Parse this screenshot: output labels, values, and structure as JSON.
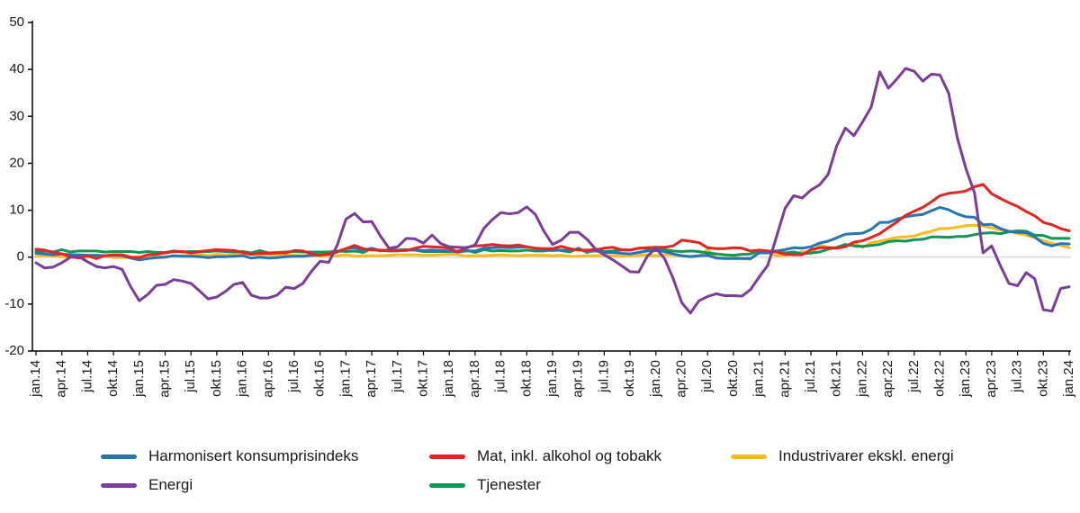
{
  "chart_data": {
    "type": "line",
    "title": "",
    "xlabel": "",
    "ylabel": "",
    "x_unit": "month",
    "x_tick_labels": [
      "jan.14",
      "apr.14",
      "jul.14",
      "okt.14",
      "jan.15",
      "apr.15",
      "jul.15",
      "okt.15",
      "jan.16",
      "apr.16",
      "jul.16",
      "okt.16",
      "jan.17",
      "apr.17",
      "jul.17",
      "okt.17",
      "jan.18",
      "apr.18",
      "jul.18",
      "okt.18",
      "jan.19",
      "apr.19",
      "jul.19",
      "okt.19",
      "jan.20",
      "apr.20",
      "jul.20",
      "okt.20",
      "jan.21",
      "apr.21",
      "jul.21",
      "okt.21",
      "jan.22",
      "apr.22",
      "jul.22",
      "okt.22",
      "jan.23",
      "apr.23",
      "jul.23",
      "okt.23",
      "jan.24"
    ],
    "x_ticks_every_n_points": 3,
    "ylim": [
      -20,
      50
    ],
    "y_ticks": [
      50,
      40,
      30,
      20,
      10,
      0,
      -10,
      -20
    ],
    "grid": "zero-line-only",
    "legend_position": "bottom",
    "legend_columns": 3,
    "draw_order": [
      2,
      4,
      0,
      1,
      3
    ],
    "axis_color": "#000000",
    "zero_line_color": "#c8c8c8",
    "series": [
      {
        "name": "Harmonisert konsumprisindeks",
        "color": "#2575b5",
        "values": [
          0.8,
          0.7,
          0.5,
          0.7,
          0.5,
          0.5,
          0.4,
          0.4,
          0.3,
          0.4,
          0.3,
          -0.2,
          -0.6,
          -0.3,
          -0.1,
          0.0,
          0.3,
          0.2,
          0.2,
          0.1,
          -0.1,
          0.1,
          0.1,
          0.2,
          0.3,
          -0.2,
          0.0,
          -0.2,
          -0.1,
          0.1,
          0.2,
          0.2,
          0.4,
          0.5,
          0.6,
          1.1,
          1.8,
          2.0,
          1.5,
          1.9,
          1.4,
          1.3,
          1.3,
          1.5,
          1.5,
          1.4,
          1.5,
          1.4,
          1.3,
          1.1,
          1.3,
          1.3,
          1.9,
          2.0,
          2.1,
          2.0,
          2.1,
          2.2,
          1.9,
          1.5,
          1.4,
          1.5,
          1.4,
          1.7,
          1.2,
          1.3,
          1.0,
          1.0,
          0.8,
          0.7,
          1.0,
          1.3,
          1.4,
          1.2,
          0.7,
          0.3,
          0.1,
          0.3,
          0.4,
          -0.2,
          -0.3,
          -0.3,
          -0.3,
          -0.3,
          0.9,
          0.9,
          1.3,
          1.6,
          2.0,
          1.9,
          2.2,
          3.0,
          3.4,
          4.1,
          4.9,
          5.0,
          5.1,
          5.9,
          7.4,
          7.4,
          8.1,
          8.6,
          8.9,
          9.1,
          9.9,
          10.6,
          10.1,
          9.2,
          8.6,
          8.5,
          6.9,
          7.0,
          6.1,
          5.5,
          5.3,
          5.2,
          4.3,
          2.9,
          2.4,
          2.9,
          2.8
        ]
      },
      {
        "name": "Mat, inkl. alkohol og tobakk",
        "color": "#e52421",
        "values": [
          1.7,
          1.5,
          1.0,
          0.7,
          0.1,
          -0.2,
          0.3,
          -0.3,
          0.3,
          0.5,
          0.5,
          0.0,
          -0.1,
          0.5,
          0.6,
          0.9,
          1.2,
          1.2,
          0.9,
          1.2,
          1.4,
          1.6,
          1.5,
          1.4,
          1.0,
          0.6,
          0.8,
          0.8,
          0.9,
          0.9,
          1.4,
          1.3,
          0.7,
          0.4,
          0.7,
          1.2,
          1.8,
          2.5,
          1.8,
          1.5,
          1.5,
          1.4,
          1.4,
          1.4,
          1.9,
          2.3,
          2.2,
          2.1,
          1.9,
          1.1,
          2.1,
          2.4,
          2.5,
          2.7,
          2.5,
          2.4,
          2.6,
          2.2,
          1.9,
          1.8,
          1.8,
          2.3,
          1.8,
          1.5,
          1.5,
          1.6,
          1.9,
          2.1,
          1.6,
          1.5,
          1.9,
          2.0,
          2.1,
          2.1,
          2.4,
          3.6,
          3.4,
          3.1,
          2.0,
          1.8,
          1.8,
          2.0,
          1.9,
          1.3,
          1.5,
          1.3,
          1.1,
          0.6,
          0.5,
          0.5,
          1.6,
          2.0,
          2.0,
          1.9,
          2.2,
          3.2,
          3.5,
          4.2,
          5.0,
          6.3,
          7.5,
          8.9,
          9.8,
          10.6,
          11.8,
          13.1,
          13.6,
          13.8,
          14.1,
          15.0,
          15.5,
          13.5,
          12.5,
          11.6,
          10.8,
          9.7,
          8.8,
          7.4,
          6.9,
          6.1,
          5.6
        ]
      },
      {
        "name": "Industrivarer ekskl. energi",
        "color": "#fbba20",
        "values": [
          0.2,
          0.4,
          0.2,
          0.1,
          0.0,
          -0.1,
          0.0,
          0.3,
          0.2,
          -0.1,
          -0.1,
          0.0,
          0.1,
          -0.1,
          0.0,
          0.1,
          0.2,
          0.3,
          0.4,
          0.6,
          0.3,
          0.6,
          0.5,
          0.5,
          0.7,
          0.7,
          0.5,
          0.5,
          0.5,
          0.4,
          0.4,
          0.3,
          0.3,
          0.3,
          0.3,
          0.3,
          0.5,
          0.2,
          0.3,
          0.3,
          0.3,
          0.4,
          0.5,
          0.5,
          0.5,
          0.4,
          0.4,
          0.5,
          0.6,
          0.6,
          0.2,
          0.3,
          0.3,
          0.4,
          0.5,
          0.4,
          0.3,
          0.4,
          0.4,
          0.4,
          0.3,
          0.4,
          0.2,
          0.2,
          0.3,
          0.3,
          0.4,
          0.3,
          0.2,
          0.3,
          0.4,
          0.5,
          0.3,
          0.5,
          0.5,
          0.3,
          0.2,
          0.2,
          1.6,
          -0.1,
          -0.3,
          -0.1,
          -0.3,
          -0.5,
          1.5,
          1.0,
          0.3,
          0.4,
          0.7,
          1.2,
          0.7,
          2.6,
          2.1,
          2.0,
          2.4,
          2.9,
          2.1,
          3.1,
          3.4,
          3.8,
          4.2,
          4.3,
          4.5,
          5.1,
          5.5,
          6.1,
          6.1,
          6.4,
          6.7,
          6.8,
          6.6,
          6.2,
          5.8,
          5.5,
          5.0,
          4.7,
          4.1,
          3.5,
          2.9,
          2.5,
          2.0
        ]
      },
      {
        "name": "Energi",
        "color": "#7b3d99",
        "values": [
          -1.2,
          -2.3,
          -2.1,
          -1.2,
          0.0,
          0.1,
          -1.0,
          -2.0,
          -2.3,
          -2.0,
          -2.6,
          -6.3,
          -9.3,
          -7.9,
          -6.0,
          -5.8,
          -4.8,
          -5.1,
          -5.6,
          -7.2,
          -8.9,
          -8.5,
          -7.3,
          -5.8,
          -5.4,
          -8.1,
          -8.7,
          -8.7,
          -8.1,
          -6.4,
          -6.7,
          -5.6,
          -3.0,
          -0.9,
          -1.1,
          2.6,
          8.1,
          9.3,
          7.5,
          7.6,
          4.5,
          1.9,
          2.2,
          4.0,
          3.9,
          3.0,
          4.7,
          2.9,
          2.2,
          2.1,
          2.0,
          2.6,
          6.1,
          8.0,
          9.5,
          9.2,
          9.5,
          10.7,
          9.1,
          5.5,
          2.7,
          3.6,
          5.3,
          5.3,
          3.8,
          1.7,
          0.5,
          -0.6,
          -1.8,
          -3.1,
          -3.2,
          0.2,
          1.9,
          -0.3,
          -4.5,
          -9.7,
          -11.9,
          -9.3,
          -8.4,
          -7.8,
          -8.2,
          -8.2,
          -8.3,
          -6.9,
          -4.2,
          -1.7,
          4.3,
          10.4,
          13.1,
          12.6,
          14.3,
          15.4,
          17.6,
          23.7,
          27.5,
          25.9,
          28.8,
          32.0,
          39.5,
          36.0,
          38.0,
          40.2,
          39.6,
          37.5,
          39.0,
          38.8,
          34.9,
          25.5,
          18.9,
          13.7,
          0.9,
          2.4,
          -1.8,
          -5.6,
          -6.1,
          -3.3,
          -4.6,
          -11.2,
          -11.5,
          -6.7,
          -6.3
        ]
      },
      {
        "name": "Tjenester",
        "color": "#119556",
        "values": [
          1.2,
          1.3,
          1.1,
          1.6,
          1.1,
          1.3,
          1.3,
          1.3,
          1.1,
          1.2,
          1.2,
          1.2,
          1.0,
          1.2,
          1.0,
          1.0,
          1.3,
          1.1,
          1.2,
          1.2,
          1.2,
          1.3,
          1.2,
          1.1,
          1.2,
          0.9,
          1.4,
          0.9,
          1.0,
          1.1,
          1.2,
          1.1,
          1.1,
          1.1,
          1.1,
          1.3,
          1.2,
          1.3,
          1.0,
          1.8,
          1.3,
          1.6,
          1.5,
          1.6,
          1.5,
          1.2,
          1.2,
          1.2,
          1.2,
          1.3,
          1.5,
          1.0,
          1.6,
          1.3,
          1.4,
          1.3,
          1.3,
          1.5,
          1.3,
          1.3,
          1.6,
          1.4,
          1.1,
          1.9,
          1.0,
          1.6,
          1.2,
          1.3,
          1.5,
          1.5,
          1.9,
          1.8,
          1.5,
          1.6,
          1.3,
          1.2,
          1.3,
          1.2,
          0.9,
          0.7,
          0.5,
          0.4,
          0.6,
          0.7,
          1.4,
          1.2,
          1.3,
          0.9,
          1.1,
          0.7,
          0.9,
          1.1,
          1.7,
          2.1,
          2.7,
          2.4,
          2.3,
          2.5,
          2.7,
          3.3,
          3.5,
          3.4,
          3.7,
          3.8,
          4.3,
          4.3,
          4.2,
          4.4,
          4.4,
          4.8,
          5.1,
          5.2,
          5.0,
          5.4,
          5.6,
          5.5,
          4.7,
          4.6,
          4.0,
          4.0,
          4.0
        ]
      }
    ]
  }
}
